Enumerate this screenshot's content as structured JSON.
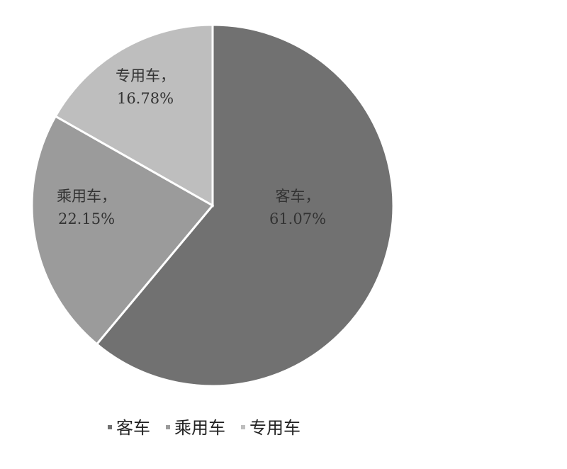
{
  "chart_data": {
    "type": "pie",
    "title": "",
    "slices": [
      {
        "label": "客车",
        "value": 61.07,
        "display": "61.07%",
        "color": "#717171"
      },
      {
        "label": "乘用车",
        "value": 22.15,
        "display": "22.15%",
        "color": "#9b9b9b"
      },
      {
        "label": "专用车",
        "value": 16.78,
        "display": "16.78%",
        "color": "#bebebe"
      }
    ],
    "start_angle": "12 o'clock",
    "direction": "clockwise",
    "legend_position": "bottom"
  }
}
